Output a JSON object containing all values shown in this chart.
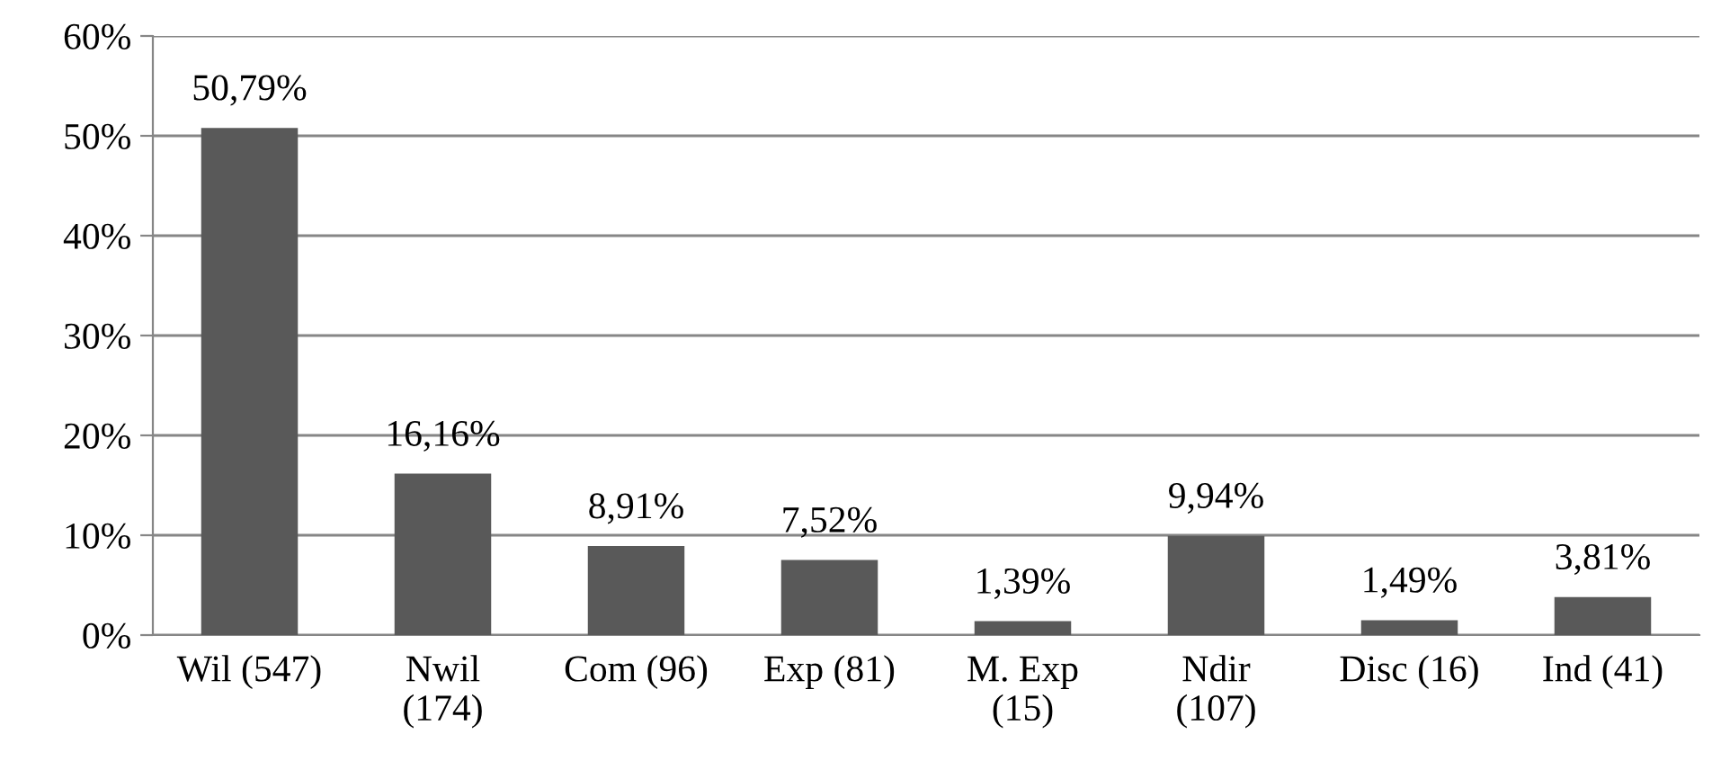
{
  "chart_data": {
    "type": "bar",
    "categories": [
      "Wil (547)",
      "Nwil\n(174)",
      "Com (96)",
      "Exp (81)",
      "M. Exp\n(15)",
      "Ndir\n(107)",
      "Disc (16)",
      "Ind (41)"
    ],
    "values": [
      50.79,
      16.16,
      8.91,
      7.52,
      1.39,
      9.94,
      1.49,
      3.81
    ],
    "value_labels": [
      "50,79%",
      "16,16%",
      "8,91%",
      "7,52%",
      "1,39%",
      "9,94%",
      "1,49%",
      "3,81%"
    ],
    "color": "#595959",
    "ylim": [
      0,
      60
    ],
    "yticks": [
      {
        "value": 0,
        "label": "0%"
      },
      {
        "value": 10,
        "label": "10%"
      },
      {
        "value": 20,
        "label": "20%"
      },
      {
        "value": 30,
        "label": "30%"
      },
      {
        "value": 40,
        "label": "40%"
      },
      {
        "value": 50,
        "label": "50%"
      },
      {
        "value": 60,
        "label": "60%"
      }
    ],
    "grid": "y"
  }
}
